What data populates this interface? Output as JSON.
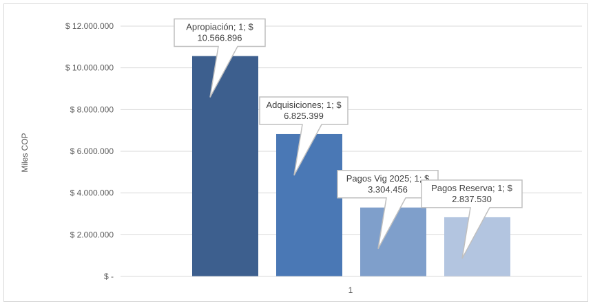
{
  "chart_data": {
    "type": "bar",
    "categories": [
      "1"
    ],
    "series": [
      {
        "name": "Apropiación",
        "values": [
          10566896
        ],
        "label_line1": "Apropiación; 1; $",
        "label_line2": "10.566.896",
        "color": "#3d5f8e"
      },
      {
        "name": "Adquisiciones",
        "values": [
          6825399
        ],
        "label_line1": "Adquisiciones; 1; $",
        "label_line2": "6.825.399",
        "color": "#4a78b5"
      },
      {
        "name": "Pagos Vig 2025",
        "values": [
          3304456
        ],
        "label_line1": "Pagos Vig 2025; 1; $",
        "label_line2": "3.304.456",
        "color": "#7f9fcb"
      },
      {
        "name": "Pagos Reserva",
        "values": [
          2837530
        ],
        "label_line1": "Pagos Reserva; 1; $",
        "label_line2": "2.837.530",
        "color": "#b3c5e0"
      }
    ],
    "ylabel": "Miles COP",
    "xlabel": "",
    "ylim": [
      0,
      12000000
    ],
    "y_ticks": [
      0,
      2000000,
      4000000,
      6000000,
      8000000,
      10000000,
      12000000
    ],
    "y_tick_labels": [
      "$ -",
      "$ 2.000.000",
      "$ 4.000.000",
      "$ 6.000.000",
      "$ 8.000.000",
      "$ 10.000.000",
      "$ 12.000.000"
    ],
    "x_tick_labels": [
      "1"
    ],
    "grid": true,
    "legend": "none"
  }
}
